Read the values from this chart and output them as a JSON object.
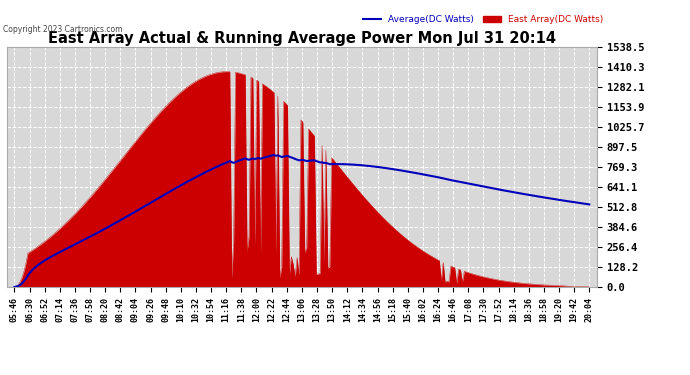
{
  "title": "East Array Actual & Running Average Power Mon Jul 31 20:14",
  "copyright": "Copyright 2023 Cartronics.com",
  "legend_avg": "Average(DC Watts)",
  "legend_east": "East Array(DC Watts)",
  "yticks": [
    0.0,
    128.2,
    256.4,
    384.6,
    512.8,
    641.1,
    769.3,
    897.5,
    1025.7,
    1153.9,
    1282.1,
    1410.3,
    1538.5
  ],
  "ymax": 1538.5,
  "ymin": 0.0,
  "bg_color": "#ffffff",
  "plot_bg_color": "#d8d8d8",
  "grid_color": "#ffffff",
  "bar_color": "#cc0000",
  "avg_line_color": "#0000bb",
  "title_color": "#000000",
  "avg_label_color": "#0000bb",
  "east_label_color": "#cc0000",
  "xtick_labels": [
    "05:46",
    "06:30",
    "06:52",
    "07:14",
    "07:36",
    "07:58",
    "08:20",
    "08:42",
    "09:04",
    "09:26",
    "09:48",
    "10:10",
    "10:32",
    "10:54",
    "11:16",
    "11:38",
    "12:00",
    "12:22",
    "12:44",
    "13:06",
    "13:28",
    "13:50",
    "14:12",
    "14:34",
    "14:56",
    "15:18",
    "15:40",
    "16:02",
    "16:24",
    "16:46",
    "17:08",
    "17:30",
    "17:52",
    "18:14",
    "18:36",
    "18:58",
    "19:20",
    "19:42",
    "20:04"
  ],
  "n_xticks": 39
}
